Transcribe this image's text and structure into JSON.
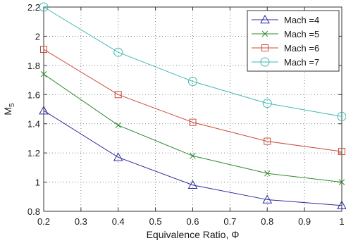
{
  "chart_data": {
    "type": "line",
    "xlabel": "Equivalence Ratio, Φ",
    "ylabel": "M",
    "ylabel_subscript": "5",
    "xlim": [
      0.2,
      1.0
    ],
    "ylim": [
      0.8,
      2.2
    ],
    "xticks": [
      0.2,
      0.3,
      0.4,
      0.5,
      0.6,
      0.7,
      0.8,
      0.9,
      1.0
    ],
    "xtick_labels": [
      "0.2",
      "0.3",
      "0.4",
      "0.5",
      "0.6",
      "0.7",
      "0.8",
      "0.9",
      "1"
    ],
    "yticks": [
      0.8,
      1.0,
      1.2,
      1.4,
      1.6,
      1.8,
      2.0,
      2.2
    ],
    "ytick_labels": [
      "0.8",
      "1",
      "1.2",
      "1.4",
      "1.6",
      "1.8",
      "2",
      "2.2"
    ],
    "grid": true,
    "grid_style": "dotted",
    "legend_position": "top-right",
    "x": [
      0.2,
      0.4,
      0.6,
      0.8,
      1.0
    ],
    "series": [
      {
        "name": "Mach =4",
        "marker": "triangle",
        "color": "#2b2b9e",
        "values": [
          1.49,
          1.17,
          0.98,
          0.88,
          0.84
        ]
      },
      {
        "name": "Mach =5",
        "marker": "x",
        "color": "#2e8a2e",
        "values": [
          1.74,
          1.39,
          1.18,
          1.06,
          1.0
        ]
      },
      {
        "name": "Mach =6",
        "marker": "square",
        "color": "#cc4a3a",
        "values": [
          1.91,
          1.6,
          1.41,
          1.28,
          1.21
        ]
      },
      {
        "name": "Mach =7",
        "marker": "circle",
        "color": "#3fb8b0",
        "values": [
          2.2,
          1.89,
          1.69,
          1.54,
          1.45
        ]
      }
    ]
  }
}
